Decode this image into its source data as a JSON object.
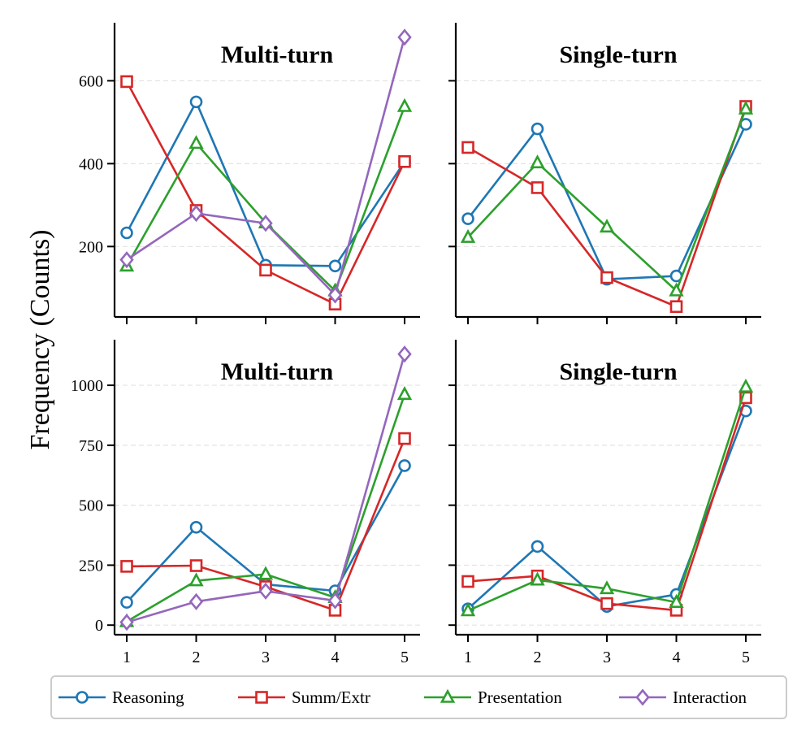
{
  "ylabel": "Frequency (Counts)",
  "colors": {
    "Reasoning": "#1f77b4",
    "Summ/Extr": "#d62728",
    "Presentation": "#2ca02c",
    "Interaction": "#9467bd"
  },
  "markers": {
    "Reasoning": "circle",
    "Summ/Extr": "square",
    "Presentation": "triangle",
    "Interaction": "diamond"
  },
  "legend": {
    "entries": [
      "Reasoning",
      "Summ/Extr",
      "Presentation",
      "Interaction"
    ],
    "placement": "bottom-center"
  },
  "chart_data": [
    {
      "type": "line",
      "title": "Multi-turn",
      "x": [
        1,
        2,
        3,
        4,
        5
      ],
      "ylim": [
        30,
        740
      ],
      "yticks": [
        200,
        400,
        600
      ],
      "grid": true,
      "series": [
        {
          "name": "Reasoning",
          "values": [
            233,
            549,
            155,
            153,
            405
          ]
        },
        {
          "name": "Summ/Extr",
          "values": [
            598,
            287,
            143,
            61,
            405
          ]
        },
        {
          "name": "Presentation",
          "values": [
            153,
            449,
            257,
            93,
            538
          ]
        },
        {
          "name": "Interaction",
          "values": [
            168,
            280,
            256,
            83,
            705
          ]
        }
      ]
    },
    {
      "type": "line",
      "title": "Single-turn",
      "x": [
        1,
        2,
        3,
        4,
        5
      ],
      "ylim": [
        30,
        740
      ],
      "yticks": [
        200,
        400,
        600
      ],
      "grid": true,
      "series": [
        {
          "name": "Reasoning",
          "values": [
            267,
            484,
            121,
            129,
            495
          ]
        },
        {
          "name": "Summ/Extr",
          "values": [
            439,
            342,
            125,
            55,
            538
          ]
        },
        {
          "name": "Presentation",
          "values": [
            222,
            402,
            247,
            93,
            532
          ]
        }
      ]
    },
    {
      "type": "line",
      "title": "Multi-turn",
      "x": [
        1,
        2,
        3,
        4,
        5
      ],
      "ylim": [
        -40,
        1190
      ],
      "yticks": [
        0,
        250,
        500,
        750,
        1000
      ],
      "grid": true,
      "series": [
        {
          "name": "Reasoning",
          "values": [
            95,
            408,
            170,
            143,
            665
          ]
        },
        {
          "name": "Summ/Extr",
          "values": [
            245,
            248,
            160,
            62,
            778
          ]
        },
        {
          "name": "Presentation",
          "values": [
            15,
            185,
            212,
            115,
            962
          ]
        },
        {
          "name": "Interaction",
          "values": [
            12,
            98,
            142,
            102,
            1130
          ]
        }
      ]
    },
    {
      "type": "line",
      "title": "Single-turn",
      "x": [
        1,
        2,
        3,
        4,
        5
      ],
      "ylim": [
        -40,
        1190
      ],
      "yticks": [
        0,
        250,
        500,
        750,
        1000
      ],
      "grid": true,
      "series": [
        {
          "name": "Reasoning",
          "values": [
            68,
            328,
            78,
            128,
            893
          ]
        },
        {
          "name": "Summ/Extr",
          "values": [
            182,
            205,
            90,
            62,
            948
          ]
        },
        {
          "name": "Presentation",
          "values": [
            60,
            188,
            152,
            95,
            993
          ]
        }
      ]
    }
  ]
}
